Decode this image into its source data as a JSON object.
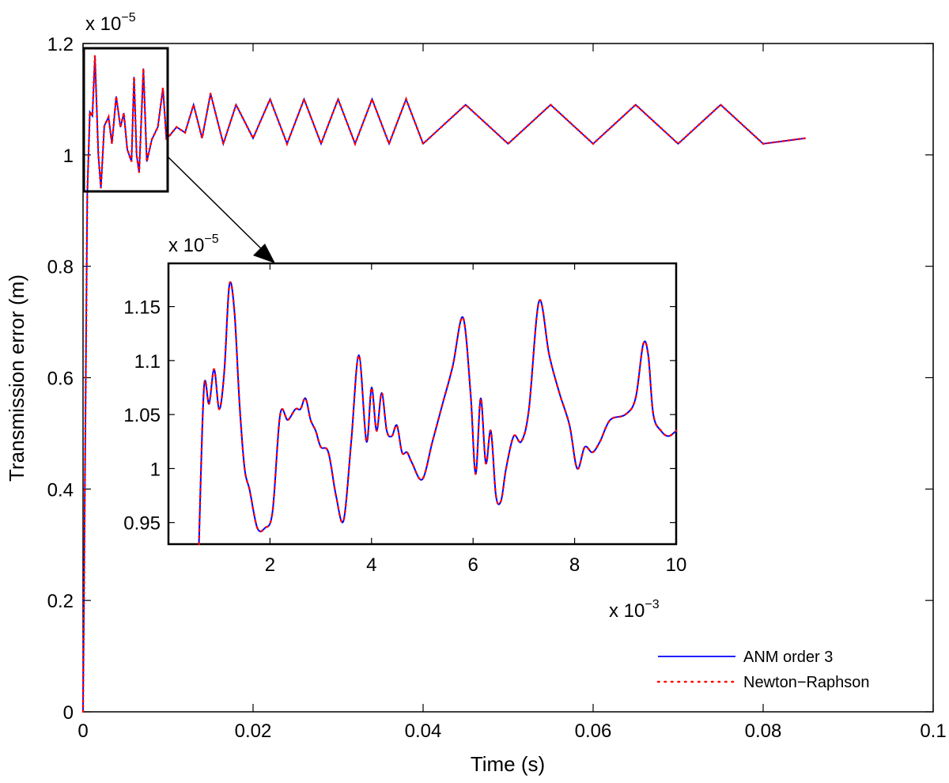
{
  "chart_data": [
    {
      "type": "line",
      "role": "main",
      "xlabel": "Time (s)",
      "ylabel": "Transmission error (m)",
      "xlim": [
        0,
        0.1
      ],
      "ylim": [
        0,
        1.2
      ],
      "xticks": [
        "0",
        "0.02",
        "0.04",
        "0.06",
        "0.08",
        "0.1"
      ],
      "xtick_values": [
        0,
        0.02,
        0.04,
        0.06,
        0.08,
        0.1
      ],
      "yticks": [
        "0",
        "0.2",
        "0.4",
        "0.6",
        "0.8",
        "1",
        "1.2"
      ],
      "ytick_values": [
        0,
        0.2,
        0.4,
        0.6,
        0.8,
        1.0,
        1.2
      ],
      "y_exponent": {
        "base": "x 10",
        "exp": "−5"
      },
      "grid": false,
      "legend_position": "bottom-right",
      "legend": [
        "ANM order 3",
        "Newton−Raphson"
      ],
      "series": [
        {
          "name": "ANM order 3",
          "color": "#0000ff",
          "style": "solid",
          "x": [
            0,
            0.0005,
            0.0008,
            0.0011,
            0.0014,
            0.0018,
            0.0021,
            0.0025,
            0.003,
            0.0034,
            0.0039,
            0.0044,
            0.0048,
            0.0052,
            0.0057,
            0.006,
            0.0063,
            0.0066,
            0.0071,
            0.0075,
            0.0081,
            0.0088,
            0.0094,
            0.0098,
            0.0102,
            0.011,
            0.012,
            0.013,
            0.014,
            0.015,
            0.0165,
            0.018,
            0.02,
            0.022,
            0.024,
            0.026,
            0.028,
            0.03,
            0.032,
            0.034,
            0.036,
            0.038,
            0.04,
            0.045,
            0.05,
            0.055,
            0.06,
            0.065,
            0.07,
            0.075,
            0.08,
            0.085
          ],
          "y": [
            0,
            0.93,
            1.077,
            1.07,
            1.178,
            1.0,
            0.94,
            1.052,
            1.068,
            1.02,
            1.105,
            1.05,
            1.075,
            1.01,
            0.988,
            1.14,
            1.0,
            0.968,
            1.155,
            0.988,
            1.028,
            1.05,
            1.12,
            1.03,
            1.035,
            1.05,
            1.04,
            1.09,
            1.03,
            1.11,
            1.02,
            1.09,
            1.03,
            1.1,
            1.02,
            1.1,
            1.02,
            1.1,
            1.02,
            1.1,
            1.02,
            1.1,
            1.02,
            1.09,
            1.02,
            1.09,
            1.02,
            1.09,
            1.02,
            1.09,
            1.02,
            1.03
          ]
        },
        {
          "name": "Newton−Raphson",
          "color": "#ff0000",
          "style": "dotted",
          "x": [
            0,
            0.0005,
            0.0008,
            0.0011,
            0.0014,
            0.0018,
            0.0021,
            0.0025,
            0.003,
            0.0034,
            0.0039,
            0.0044,
            0.0048,
            0.0052,
            0.0057,
            0.006,
            0.0063,
            0.0066,
            0.0071,
            0.0075,
            0.0081,
            0.0088,
            0.0094,
            0.0098,
            0.0102,
            0.011,
            0.012,
            0.013,
            0.014,
            0.015,
            0.0165,
            0.018,
            0.02,
            0.022,
            0.024,
            0.026,
            0.028,
            0.03,
            0.032,
            0.034,
            0.036,
            0.038,
            0.04,
            0.045,
            0.05,
            0.055,
            0.06,
            0.065,
            0.07,
            0.075,
            0.08,
            0.085
          ],
          "y": [
            0,
            0.93,
            1.077,
            1.07,
            1.178,
            1.0,
            0.94,
            1.052,
            1.068,
            1.02,
            1.105,
            1.05,
            1.075,
            1.01,
            0.988,
            1.14,
            1.0,
            0.968,
            1.155,
            0.988,
            1.028,
            1.05,
            1.12,
            1.03,
            1.035,
            1.05,
            1.04,
            1.09,
            1.03,
            1.11,
            1.02,
            1.09,
            1.03,
            1.1,
            1.02,
            1.1,
            1.02,
            1.1,
            1.02,
            1.1,
            1.02,
            1.1,
            1.02,
            1.09,
            1.02,
            1.09,
            1.02,
            1.09,
            1.02,
            1.09,
            1.02,
            1.03
          ]
        }
      ]
    },
    {
      "type": "line",
      "role": "inset",
      "xlim": [
        0,
        10
      ],
      "ylim": [
        0.93,
        1.19
      ],
      "xticks": [
        "2",
        "4",
        "6",
        "8",
        "10"
      ],
      "xtick_values": [
        2,
        4,
        6,
        8,
        10
      ],
      "yticks": [
        "0.95",
        "1",
        "1.05",
        "1.1",
        "1.15"
      ],
      "ytick_values": [
        0.95,
        1.0,
        1.05,
        1.1,
        1.15
      ],
      "x_exponent": {
        "base": "x 10",
        "exp": "−3"
      },
      "y_exponent": {
        "base": "x 10",
        "exp": "−5"
      },
      "zoom_source": {
        "x": [
          0,
          0.01
        ],
        "y": [
          0.93,
          1.19
        ]
      },
      "series": [
        {
          "name": "ANM order 3",
          "color": "#0000ff",
          "style": "solid",
          "x": [
            0.6,
            0.7,
            0.8,
            0.9,
            1.0,
            1.1,
            1.2,
            1.3,
            1.4,
            1.5,
            1.6,
            1.75,
            1.9,
            2.05,
            2.2,
            2.35,
            2.5,
            2.6,
            2.7,
            2.8,
            2.9,
            3.0,
            3.15,
            3.3,
            3.45,
            3.6,
            3.75,
            3.9,
            4.0,
            4.1,
            4.2,
            4.3,
            4.4,
            4.5,
            4.6,
            4.7,
            4.8,
            5.0,
            5.2,
            5.4,
            5.6,
            5.8,
            5.95,
            6.05,
            6.15,
            6.25,
            6.35,
            6.45,
            6.55,
            6.65,
            6.8,
            6.95,
            7.1,
            7.3,
            7.5,
            7.7,
            7.9,
            8.05,
            8.2,
            8.35,
            8.5,
            8.7,
            9.0,
            9.2,
            9.35,
            9.45,
            9.55,
            9.7,
            9.85,
            10.0
          ],
          "y": [
            0.93,
            1.075,
            1.06,
            1.092,
            1.055,
            1.09,
            1.17,
            1.145,
            1.06,
            1.0,
            0.98,
            0.945,
            0.945,
            0.96,
            1.05,
            1.045,
            1.055,
            1.055,
            1.065,
            1.045,
            1.035,
            1.02,
            1.015,
            0.975,
            0.952,
            1.025,
            1.105,
            1.025,
            1.075,
            1.035,
            1.07,
            1.035,
            1.03,
            1.04,
            1.015,
            1.015,
            1.005,
            0.99,
            1.025,
            1.06,
            1.095,
            1.14,
            1.07,
            0.995,
            1.065,
            1.005,
            1.035,
            0.975,
            0.97,
            1.0,
            1.03,
            1.025,
            1.055,
            1.155,
            1.105,
            1.07,
            1.04,
            1.0,
            1.02,
            1.015,
            1.025,
            1.045,
            1.05,
            1.065,
            1.115,
            1.105,
            1.05,
            1.035,
            1.03,
            1.035
          ]
        },
        {
          "name": "Newton−Raphson",
          "color": "#ff0000",
          "style": "dotted",
          "x": [
            0.6,
            0.7,
            0.8,
            0.9,
            1.0,
            1.1,
            1.2,
            1.3,
            1.4,
            1.5,
            1.6,
            1.75,
            1.9,
            2.05,
            2.2,
            2.35,
            2.5,
            2.6,
            2.7,
            2.8,
            2.9,
            3.0,
            3.15,
            3.3,
            3.45,
            3.6,
            3.75,
            3.9,
            4.0,
            4.1,
            4.2,
            4.3,
            4.4,
            4.5,
            4.6,
            4.7,
            4.8,
            5.0,
            5.2,
            5.4,
            5.6,
            5.8,
            5.95,
            6.05,
            6.15,
            6.25,
            6.35,
            6.45,
            6.55,
            6.65,
            6.8,
            6.95,
            7.1,
            7.3,
            7.5,
            7.7,
            7.9,
            8.05,
            8.2,
            8.35,
            8.5,
            8.7,
            9.0,
            9.2,
            9.35,
            9.45,
            9.55,
            9.7,
            9.85,
            10.0
          ],
          "y": [
            0.93,
            1.075,
            1.06,
            1.092,
            1.055,
            1.09,
            1.17,
            1.145,
            1.06,
            1.0,
            0.98,
            0.945,
            0.945,
            0.96,
            1.05,
            1.045,
            1.055,
            1.055,
            1.065,
            1.045,
            1.035,
            1.02,
            1.015,
            0.975,
            0.952,
            1.025,
            1.105,
            1.025,
            1.075,
            1.035,
            1.07,
            1.035,
            1.03,
            1.04,
            1.015,
            1.015,
            1.005,
            0.99,
            1.025,
            1.06,
            1.095,
            1.14,
            1.07,
            0.995,
            1.065,
            1.005,
            1.035,
            0.975,
            0.97,
            1.0,
            1.03,
            1.025,
            1.055,
            1.155,
            1.105,
            1.07,
            1.04,
            1.0,
            1.02,
            1.015,
            1.025,
            1.045,
            1.05,
            1.065,
            1.115,
            1.105,
            1.05,
            1.035,
            1.03,
            1.035
          ]
        }
      ]
    }
  ]
}
